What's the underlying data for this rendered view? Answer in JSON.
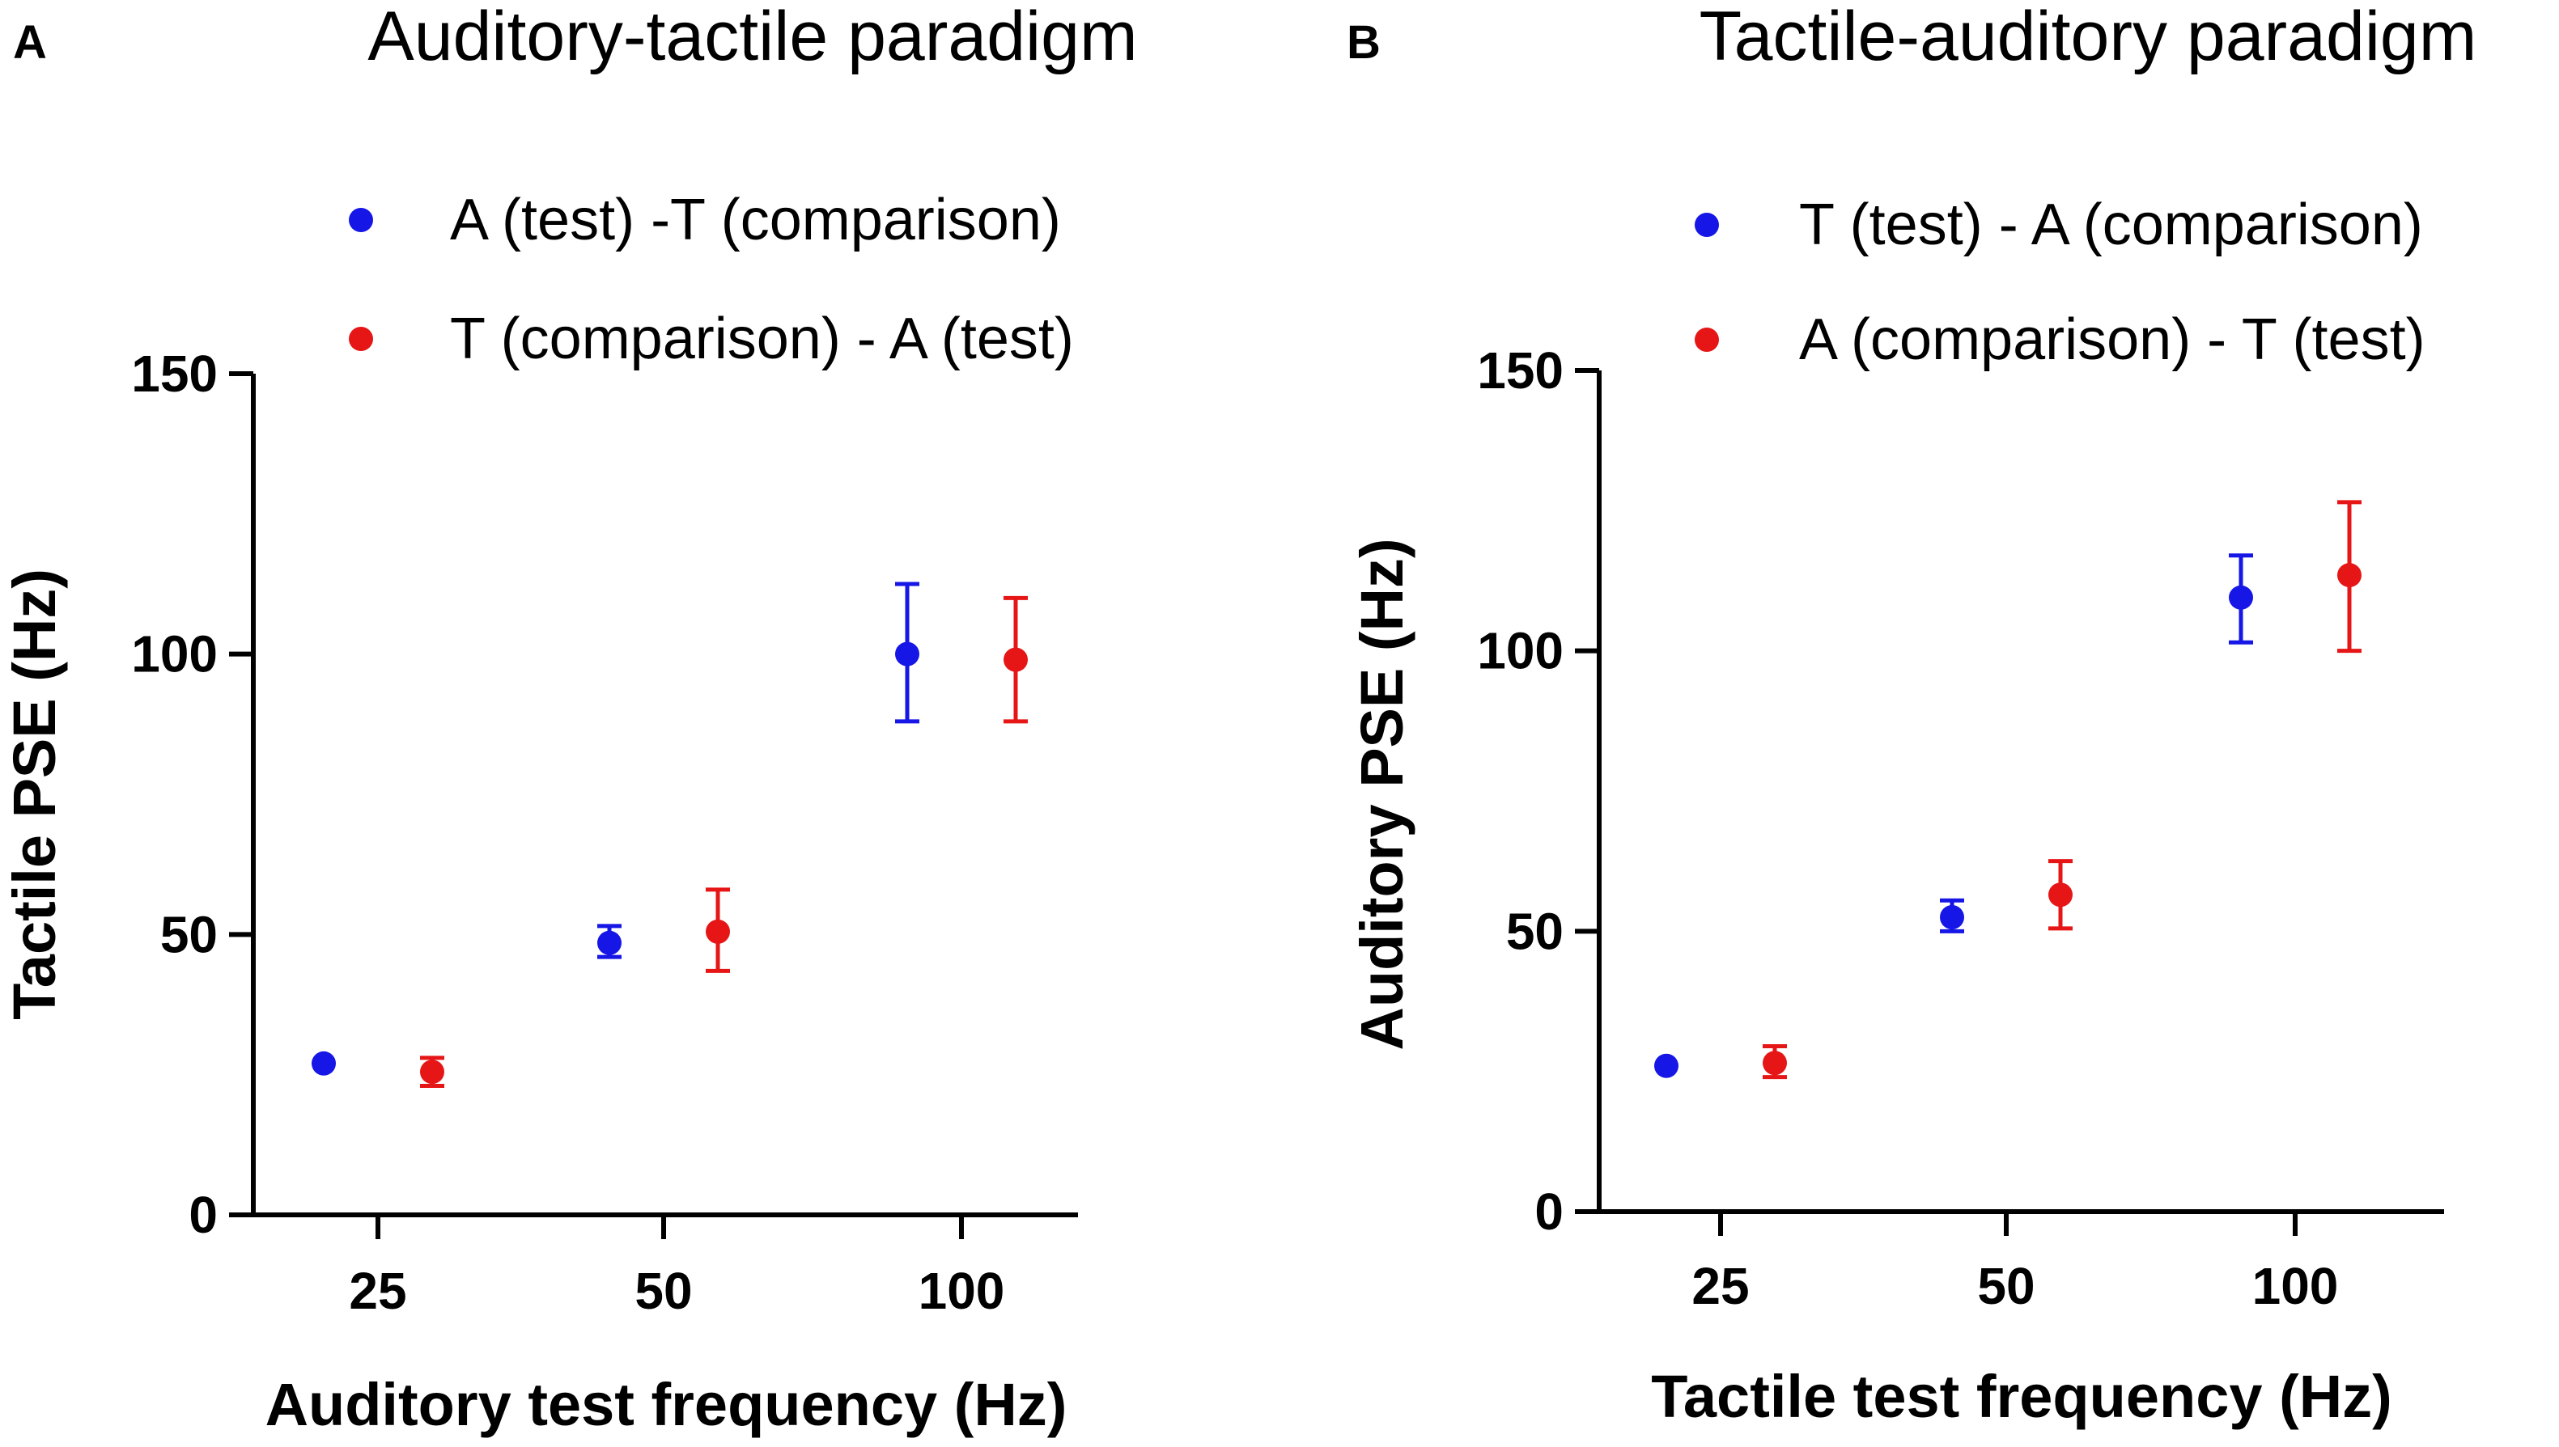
{
  "chart_data": [
    {
      "type": "scatter",
      "panel": "A",
      "title": "Auditory-tactile paradigm",
      "xlabel": "Auditory test frequency (Hz)",
      "ylabel": "Tactile PSE (Hz)",
      "categories": [
        "25",
        "50",
        "100"
      ],
      "ylim": [
        0,
        150
      ],
      "yticks": [
        "0",
        "50",
        "100",
        "150"
      ],
      "grid": false,
      "legend_position": "top",
      "series": [
        {
          "name": "A (test) -T (comparison)",
          "color": "#1616e6",
          "values": [
            27,
            48.5,
            100
          ],
          "err_low": [
            27,
            46,
            88
          ],
          "err_high": [
            27,
            51.5,
            112.5
          ]
        },
        {
          "name": "T (comparison) - A (test)",
          "color": "#e61616",
          "values": [
            25.5,
            50.5,
            99
          ],
          "err_low": [
            23,
            43.5,
            88
          ],
          "err_high": [
            28,
            58,
            110
          ]
        }
      ]
    },
    {
      "type": "scatter",
      "panel": "B",
      "title": "Tactile-auditory paradigm",
      "xlabel": "Tactile test frequency (Hz)",
      "ylabel": "Auditory PSE (Hz)",
      "categories": [
        "25",
        "50",
        "100"
      ],
      "ylim": [
        0,
        150
      ],
      "yticks": [
        "0",
        "50",
        "100",
        "150"
      ],
      "grid": false,
      "legend_position": "top",
      "series": [
        {
          "name": "T (test) - A (comparison)",
          "color": "#1616e6",
          "values": [
            26,
            52.5,
            109.5
          ],
          "err_low": [
            26,
            50,
            101.5
          ],
          "err_high": [
            26,
            55.5,
            117
          ]
        },
        {
          "name": "A (comparison) - T (test)",
          "color": "#e61616",
          "values": [
            26.5,
            56.5,
            113.5
          ],
          "err_low": [
            24,
            50.5,
            100
          ],
          "err_high": [
            29.5,
            62.5,
            126.5
          ]
        }
      ]
    }
  ]
}
